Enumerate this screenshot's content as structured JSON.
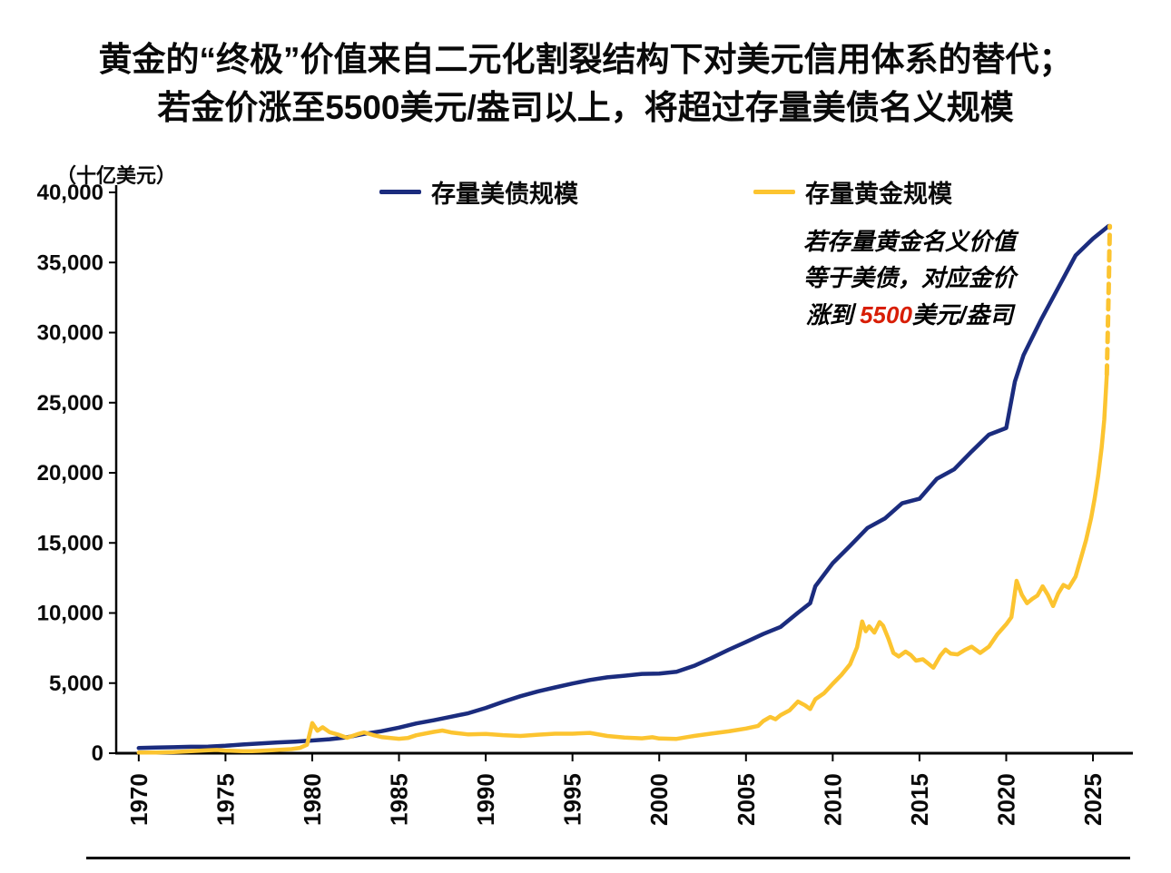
{
  "title": {
    "line1": "黄金的“终极”价值来自二元化割裂结构下对美元信用体系的替代；",
    "line2": "若金价涨至5500美元/盎司以上，将超过存量美债名义规模"
  },
  "axis_unit": "（十亿美元）",
  "legend": {
    "treasury": "存量美债规模",
    "gold": "存量黄金规模"
  },
  "annotation": {
    "line1": "若存量黄金名义价值",
    "line2": "等于美债，对应金价",
    "line3_prefix": "涨到 ",
    "line3_highlight": "5500",
    "line3_suffix": "美元/盎司"
  },
  "colors": {
    "treasury": "#1b2c7e",
    "gold": "#fcc430",
    "highlight_red": "#d81e06",
    "axis": "#000000"
  },
  "chart_data": {
    "type": "line",
    "title": "黄金的“终极”价值来自二元化割裂结构下对美元信用体系的替代；若金价涨至5500美元/盎司以上，将超过存量美债名义规模",
    "ylabel": "（十亿美元）",
    "xlabel": "",
    "grid": false,
    "legend_position": "top",
    "axis_color": "#000000",
    "xlim": [
      1968.7,
      2027.3
    ],
    "ylim": [
      0,
      40000
    ],
    "yticks": [
      {
        "v": 0,
        "label": "0"
      },
      {
        "v": 5000,
        "label": "5,000"
      },
      {
        "v": 10000,
        "label": "10,000"
      },
      {
        "v": 15000,
        "label": "15,000"
      },
      {
        "v": 20000,
        "label": "20,000"
      },
      {
        "v": 25000,
        "label": "25,000"
      },
      {
        "v": 30000,
        "label": "30,000"
      },
      {
        "v": 35000,
        "label": "35,000"
      },
      {
        "v": 40000,
        "label": "40,000"
      }
    ],
    "xticks": [
      {
        "v": 1970,
        "label": "1970"
      },
      {
        "v": 1975,
        "label": "1975"
      },
      {
        "v": 1980,
        "label": "1980"
      },
      {
        "v": 1985,
        "label": "1985"
      },
      {
        "v": 1990,
        "label": "1990"
      },
      {
        "v": 1995,
        "label": "1995"
      },
      {
        "v": 2000,
        "label": "2000"
      },
      {
        "v": 2005,
        "label": "2005"
      },
      {
        "v": 2010,
        "label": "2010"
      },
      {
        "v": 2015,
        "label": "2015"
      },
      {
        "v": 2020,
        "label": "2020"
      },
      {
        "v": 2025,
        "label": "2025"
      }
    ],
    "series": [
      {
        "name": "存量美债规模",
        "key": "treasury",
        "color": "#1b2c7e",
        "style": "solid",
        "width": 4.5,
        "points": [
          [
            1970,
            370
          ],
          [
            1971,
            400
          ],
          [
            1972,
            427
          ],
          [
            1973,
            458
          ],
          [
            1974,
            475
          ],
          [
            1975,
            533
          ],
          [
            1976,
            620
          ],
          [
            1977,
            699
          ],
          [
            1978,
            772
          ],
          [
            1979,
            827
          ],
          [
            1980,
            908
          ],
          [
            1981,
            998
          ],
          [
            1982,
            1142
          ],
          [
            1983,
            1377
          ],
          [
            1984,
            1572
          ],
          [
            1985,
            1823
          ],
          [
            1986,
            2125
          ],
          [
            1987,
            2350
          ],
          [
            1988,
            2602
          ],
          [
            1989,
            2857
          ],
          [
            1990,
            3233
          ],
          [
            1991,
            3665
          ],
          [
            1992,
            4065
          ],
          [
            1993,
            4411
          ],
          [
            1994,
            4693
          ],
          [
            1995,
            4974
          ],
          [
            1996,
            5225
          ],
          [
            1997,
            5413
          ],
          [
            1998,
            5526
          ],
          [
            1999,
            5656
          ],
          [
            2000,
            5674
          ],
          [
            2001,
            5807
          ],
          [
            2002,
            6228
          ],
          [
            2003,
            6783
          ],
          [
            2004,
            7379
          ],
          [
            2005,
            7933
          ],
          [
            2006,
            8507
          ],
          [
            2007,
            9008
          ],
          [
            2008,
            10025
          ],
          [
            2008.7,
            10700
          ],
          [
            2009,
            11910
          ],
          [
            2010,
            13562
          ],
          [
            2011,
            14790
          ],
          [
            2012,
            16066
          ],
          [
            2013,
            16738
          ],
          [
            2014,
            17824
          ],
          [
            2015,
            18151
          ],
          [
            2016,
            19573
          ],
          [
            2017,
            20245
          ],
          [
            2018,
            21516
          ],
          [
            2019,
            22719
          ],
          [
            2020,
            23200
          ],
          [
            2020.5,
            26500
          ],
          [
            2021,
            28400
          ],
          [
            2022,
            30900
          ],
          [
            2023,
            33200
          ],
          [
            2024,
            35500
          ],
          [
            2025,
            36700
          ],
          [
            2025.6,
            37300
          ],
          [
            2025.9,
            37600
          ]
        ]
      },
      {
        "name": "存量黄金规模",
        "key": "gold",
        "color": "#fcc430",
        "style": "solid",
        "width": 4.5,
        "points": [
          [
            1970,
            48
          ],
          [
            1971,
            55
          ],
          [
            1972,
            80
          ],
          [
            1973,
            140
          ],
          [
            1974,
            210
          ],
          [
            1974.5,
            230
          ],
          [
            1975,
            190
          ],
          [
            1976,
            150
          ],
          [
            1976.5,
            140
          ],
          [
            1977,
            170
          ],
          [
            1978,
            230
          ],
          [
            1978.8,
            290
          ],
          [
            1979.3,
            380
          ],
          [
            1979.7,
            600
          ],
          [
            1980,
            2150
          ],
          [
            1980.3,
            1600
          ],
          [
            1980.6,
            1850
          ],
          [
            1981,
            1500
          ],
          [
            1981.5,
            1330
          ],
          [
            1982,
            1100
          ],
          [
            1982.6,
            1350
          ],
          [
            1983,
            1480
          ],
          [
            1983.5,
            1300
          ],
          [
            1984,
            1150
          ],
          [
            1985,
            1030
          ],
          [
            1985.5,
            1080
          ],
          [
            1986,
            1280
          ],
          [
            1987,
            1520
          ],
          [
            1987.5,
            1620
          ],
          [
            1988,
            1480
          ],
          [
            1989,
            1340
          ],
          [
            1990,
            1380
          ],
          [
            1991,
            1290
          ],
          [
            1992,
            1230
          ],
          [
            1993,
            1320
          ],
          [
            1994,
            1390
          ],
          [
            1995,
            1390
          ],
          [
            1996,
            1450
          ],
          [
            1997,
            1230
          ],
          [
            1998,
            1120
          ],
          [
            1999,
            1060
          ],
          [
            1999.6,
            1140
          ],
          [
            2000,
            1050
          ],
          [
            2001,
            1020
          ],
          [
            2002,
            1230
          ],
          [
            2003,
            1400
          ],
          [
            2004,
            1560
          ],
          [
            2005,
            1760
          ],
          [
            2005.7,
            1950
          ],
          [
            2006,
            2300
          ],
          [
            2006.4,
            2580
          ],
          [
            2006.7,
            2420
          ],
          [
            2007,
            2720
          ],
          [
            2007.5,
            3050
          ],
          [
            2008,
            3680
          ],
          [
            2008.4,
            3420
          ],
          [
            2008.7,
            3150
          ],
          [
            2009,
            3850
          ],
          [
            2009.5,
            4280
          ],
          [
            2010,
            4950
          ],
          [
            2010.5,
            5580
          ],
          [
            2011,
            6350
          ],
          [
            2011.4,
            7550
          ],
          [
            2011.7,
            9400
          ],
          [
            2011.9,
            8700
          ],
          [
            2012.1,
            9050
          ],
          [
            2012.4,
            8600
          ],
          [
            2012.7,
            9350
          ],
          [
            2012.9,
            9100
          ],
          [
            2013.2,
            8200
          ],
          [
            2013.5,
            7150
          ],
          [
            2013.8,
            6900
          ],
          [
            2014.2,
            7250
          ],
          [
            2014.5,
            7000
          ],
          [
            2014.8,
            6600
          ],
          [
            2015.2,
            6700
          ],
          [
            2015.5,
            6400
          ],
          [
            2015.8,
            6100
          ],
          [
            2016.2,
            6950
          ],
          [
            2016.5,
            7400
          ],
          [
            2016.8,
            7100
          ],
          [
            2017.2,
            7050
          ],
          [
            2017.6,
            7350
          ],
          [
            2018,
            7600
          ],
          [
            2018.5,
            7150
          ],
          [
            2019,
            7600
          ],
          [
            2019.5,
            8500
          ],
          [
            2020,
            9200
          ],
          [
            2020.3,
            9700
          ],
          [
            2020.6,
            12300
          ],
          [
            2020.9,
            11300
          ],
          [
            2021.2,
            10700
          ],
          [
            2021.5,
            11000
          ],
          [
            2021.8,
            11250
          ],
          [
            2022.1,
            11900
          ],
          [
            2022.4,
            11300
          ],
          [
            2022.7,
            10500
          ],
          [
            2023,
            11400
          ],
          [
            2023.3,
            12000
          ],
          [
            2023.6,
            11800
          ],
          [
            2024,
            12600
          ],
          [
            2024.3,
            13900
          ],
          [
            2024.6,
            15200
          ],
          [
            2024.9,
            16800
          ],
          [
            2025.1,
            18200
          ],
          [
            2025.3,
            19800
          ],
          [
            2025.5,
            21800
          ],
          [
            2025.65,
            23800
          ],
          [
            2025.8,
            27000
          ]
        ]
      },
      {
        "name": "存量黄金规模（假设金价5500美元/盎司）",
        "key": "gold-projection",
        "color": "#fcc430",
        "style": "dashed",
        "width": 5,
        "points": [
          [
            2025.8,
            27000
          ],
          [
            2025.86,
            30500
          ],
          [
            2025.92,
            34000
          ],
          [
            2025.97,
            37600
          ]
        ]
      }
    ]
  }
}
